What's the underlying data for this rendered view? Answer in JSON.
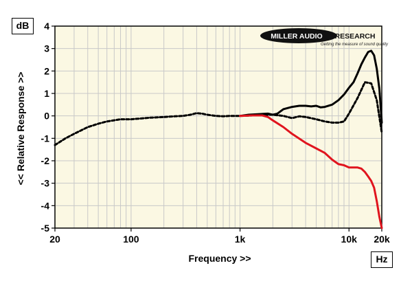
{
  "logo": {
    "name": "MILLER AUDIO RESEARCH",
    "tagline": "Getting the measure of sound quality"
  },
  "units": {
    "y": "dB",
    "x": "Hz"
  },
  "colors": {
    "plot_background": "#fbf8e3",
    "grid": "#c8c8c8",
    "axis": "#000000",
    "series_red": "#e0141e",
    "series_black": "#000000"
  },
  "chart_data": {
    "type": "line",
    "title": "",
    "xlabel": "Frequency >>",
    "ylabel": "<< Relative Response >>",
    "xscale": "log",
    "xlim": [
      20,
      20000
    ],
    "ylim": [
      -5,
      4
    ],
    "grid": true,
    "x_ticks": [
      20,
      100,
      1000,
      10000,
      20000
    ],
    "x_tick_labels": [
      "20",
      "100",
      "1k",
      "10k",
      "20k"
    ],
    "y_ticks": [
      4,
      3,
      2,
      1,
      0,
      -1,
      -2,
      -3,
      -4,
      -5
    ],
    "y_tick_labels": [
      "4",
      "3",
      "2",
      "1",
      "0",
      "-1",
      "-2",
      "-3",
      "-4",
      "-5"
    ],
    "series": [
      {
        "color": "#000000",
        "style": "dashed",
        "x": [
          20,
          25,
          30,
          40,
          50,
          60,
          80,
          100,
          120,
          150,
          200,
          250,
          300,
          350,
          400,
          450,
          500,
          600,
          700,
          800,
          1000,
          1300,
          1600,
          2000,
          2500,
          3000,
          3500,
          4000,
          5000,
          6000,
          7000,
          8000,
          9000,
          10000,
          12000,
          14000,
          16000,
          18000,
          20000
        ],
        "y": [
          -1.3,
          -1.0,
          -0.8,
          -0.5,
          -0.35,
          -0.25,
          -0.15,
          -0.15,
          -0.12,
          -0.08,
          -0.05,
          -0.02,
          0.0,
          0.05,
          0.12,
          0.1,
          0.05,
          0.0,
          -0.02,
          0.0,
          0.0,
          0.02,
          0.05,
          0.05,
          0.0,
          -0.1,
          -0.02,
          -0.05,
          -0.15,
          -0.25,
          -0.3,
          -0.3,
          -0.25,
          0.1,
          0.8,
          1.5,
          1.45,
          0.7,
          -0.75
        ]
      },
      {
        "color": "#000000",
        "style": "solid",
        "x": [
          1000,
          1200,
          1500,
          1800,
          2000,
          2200,
          2500,
          3000,
          3500,
          4000,
          4500,
          5000,
          5500,
          6000,
          7000,
          8000,
          9000,
          10000,
          11000,
          12000,
          13000,
          14000,
          15000,
          16000,
          17000,
          18000,
          19000,
          20000
        ],
        "y": [
          0.0,
          0.05,
          0.08,
          0.1,
          0.05,
          0.1,
          0.3,
          0.4,
          0.45,
          0.45,
          0.42,
          0.45,
          0.38,
          0.4,
          0.5,
          0.7,
          0.95,
          1.25,
          1.5,
          1.9,
          2.3,
          2.6,
          2.85,
          2.9,
          2.7,
          2.1,
          1.2,
          -0.3
        ]
      },
      {
        "color": "#e0141e",
        "style": "solid",
        "x": [
          1000,
          1300,
          1600,
          1800,
          2000,
          2500,
          3000,
          4000,
          5000,
          6000,
          7000,
          8000,
          9000,
          10000,
          11000,
          12000,
          13000,
          14000,
          15000,
          16000,
          17000,
          18000,
          19000,
          20000
        ],
        "y": [
          0.0,
          0.02,
          0.02,
          -0.05,
          -0.2,
          -0.5,
          -0.8,
          -1.2,
          -1.45,
          -1.65,
          -1.95,
          -2.15,
          -2.2,
          -2.3,
          -2.3,
          -2.3,
          -2.35,
          -2.5,
          -2.7,
          -2.9,
          -3.2,
          -3.8,
          -4.5,
          -5.0
        ]
      }
    ]
  }
}
